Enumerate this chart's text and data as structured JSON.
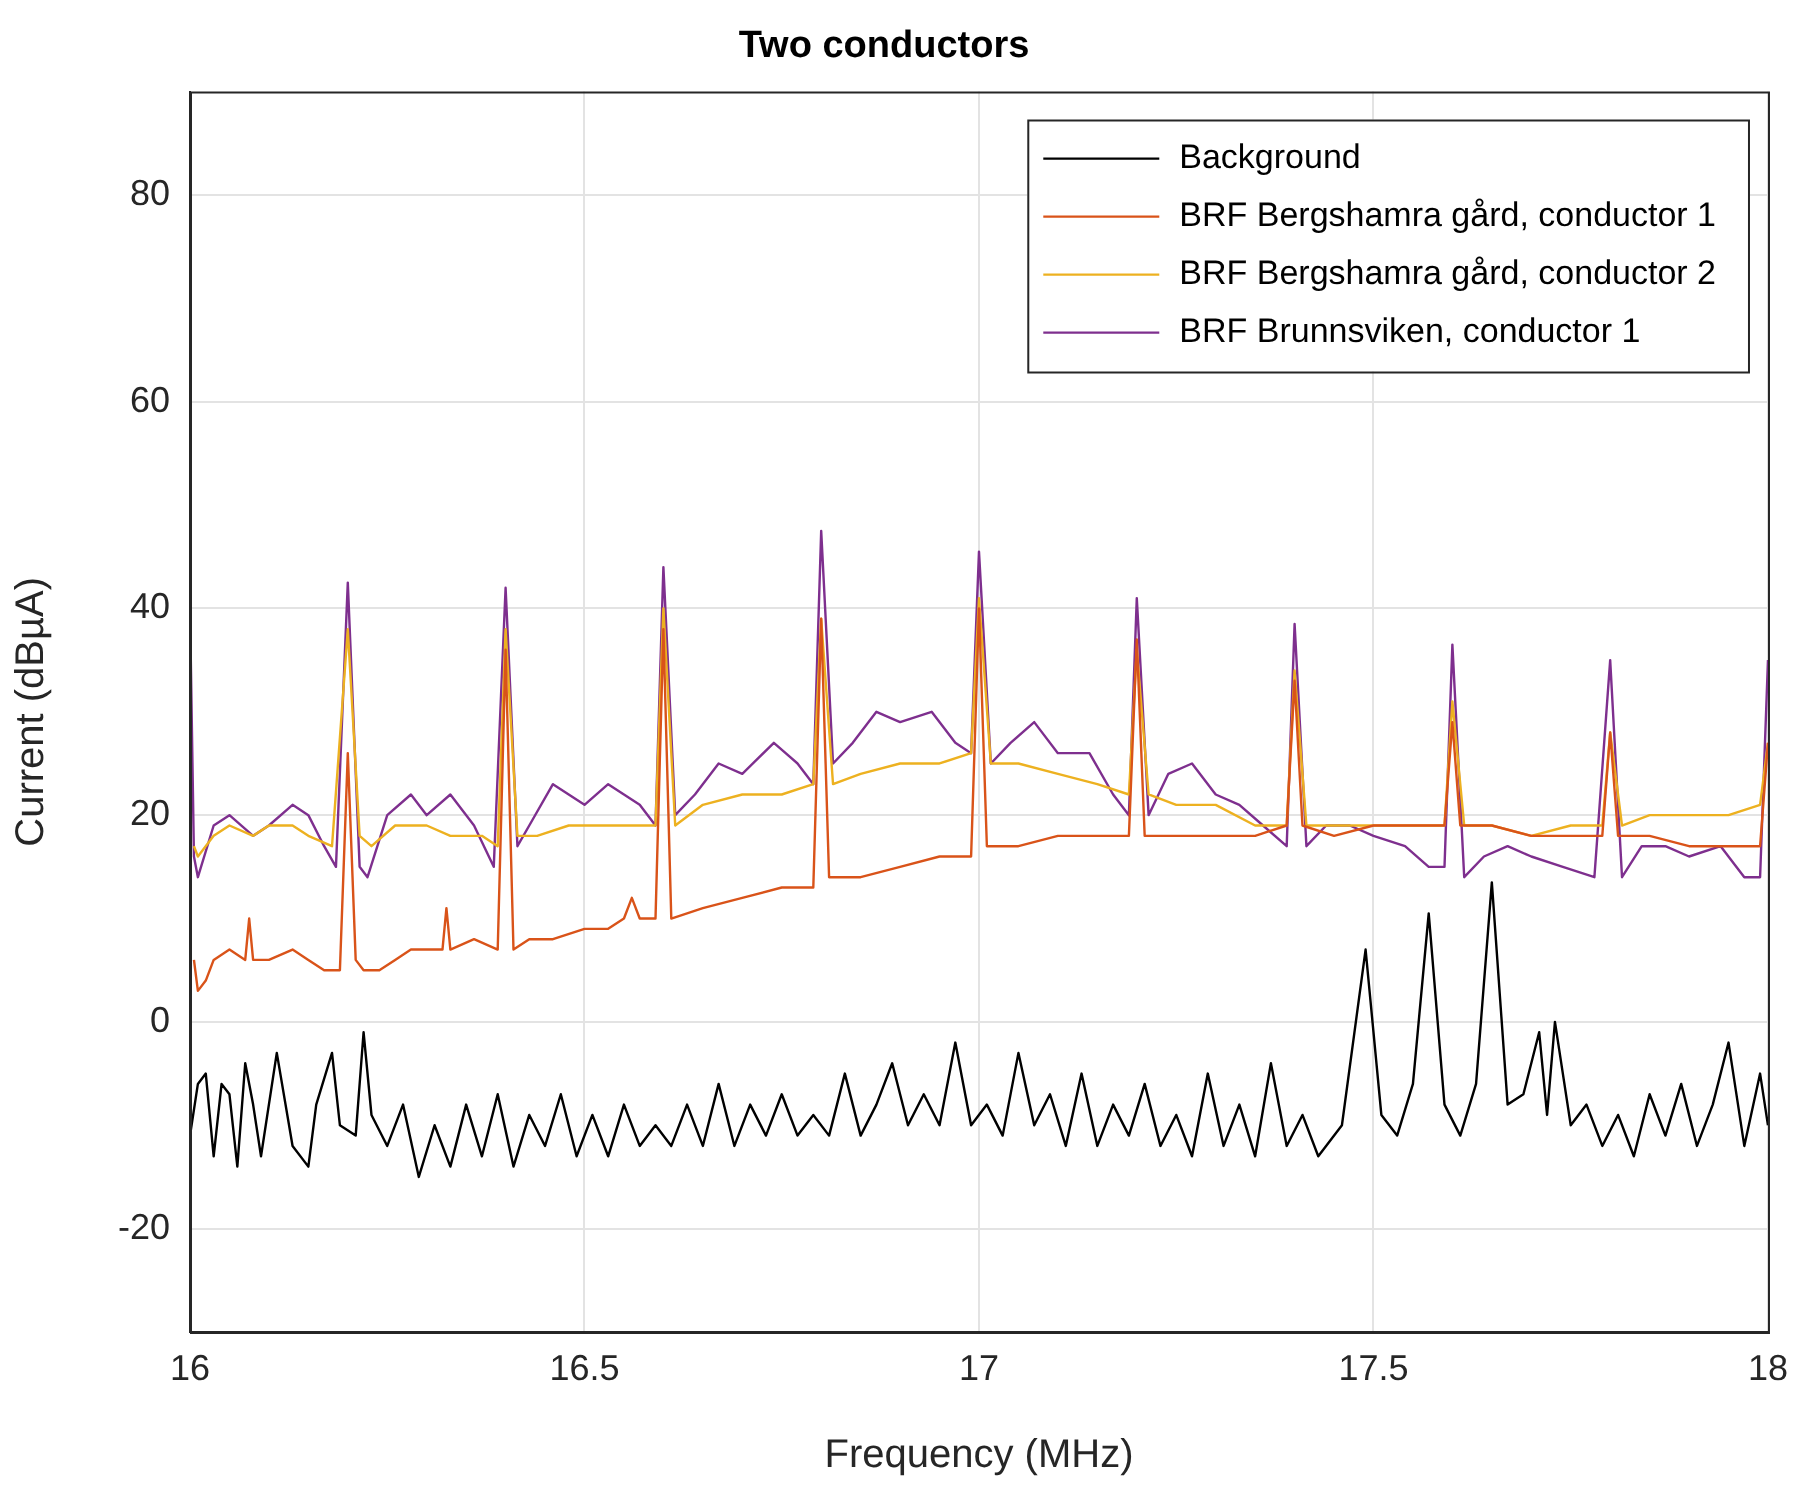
{
  "chart_data": {
    "type": "line",
    "title": "Two conductors",
    "xlabel": "Frequency (MHz)",
    "ylabel": "Current (dBµA)",
    "xlim": [
      16,
      18
    ],
    "xticks": [
      16,
      16.5,
      17,
      17.5,
      18
    ],
    "ylim": [
      -30,
      90
    ],
    "yticks": [
      -20,
      0,
      20,
      40,
      60,
      80
    ],
    "grid": true,
    "legend": "top right",
    "series": [
      {
        "name": "Background",
        "color": "#000000",
        "x": [
          16.0,
          16.01,
          16.02,
          16.03,
          16.04,
          16.05,
          16.06,
          16.07,
          16.08,
          16.09,
          16.11,
          16.13,
          16.15,
          16.16,
          16.18,
          16.19,
          16.21,
          16.22,
          16.23,
          16.25,
          16.27,
          16.29,
          16.31,
          16.33,
          16.35,
          16.37,
          16.39,
          16.41,
          16.43,
          16.45,
          16.47,
          16.49,
          16.51,
          16.53,
          16.55,
          16.57,
          16.59,
          16.61,
          16.63,
          16.65,
          16.67,
          16.69,
          16.71,
          16.73,
          16.75,
          16.77,
          16.79,
          16.81,
          16.83,
          16.85,
          16.87,
          16.89,
          16.91,
          16.93,
          16.95,
          16.97,
          16.99,
          17.01,
          17.03,
          17.05,
          17.07,
          17.09,
          17.11,
          17.13,
          17.15,
          17.17,
          17.19,
          17.21,
          17.23,
          17.25,
          17.27,
          17.29,
          17.31,
          17.33,
          17.35,
          17.37,
          17.39,
          17.41,
          17.43,
          17.46,
          17.49,
          17.51,
          17.53,
          17.55,
          17.57,
          17.59,
          17.61,
          17.63,
          17.65,
          17.67,
          17.69,
          17.71,
          17.72,
          17.73,
          17.75,
          17.77,
          17.79,
          17.81,
          17.83,
          17.85,
          17.87,
          17.89,
          17.91,
          17.93,
          17.95,
          17.97,
          17.99,
          18.0
        ],
        "values": [
          -11,
          -6,
          -5,
          -13,
          -6,
          -7,
          -14,
          -4,
          -8,
          -13,
          -3,
          -12,
          -14,
          -8,
          -3,
          -10,
          -11,
          -1,
          -9,
          -12,
          -8,
          -15,
          -10,
          -14,
          -8,
          -13,
          -7,
          -14,
          -9,
          -12,
          -7,
          -13,
          -9,
          -13,
          -8,
          -12,
          -10,
          -12,
          -8,
          -12,
          -6,
          -12,
          -8,
          -11,
          -7,
          -11,
          -9,
          -11,
          -5,
          -11,
          -8,
          -4,
          -10,
          -7,
          -10,
          -2,
          -10,
          -8,
          -11,
          -3,
          -10,
          -7,
          -12,
          -5,
          -12,
          -8,
          -11,
          -6,
          -12,
          -9,
          -13,
          -5,
          -12,
          -8,
          -13,
          -4,
          -12,
          -9,
          -13,
          -10,
          7,
          -9,
          -11,
          -6,
          10.5,
          -8,
          -11,
          -6,
          13.5,
          -8,
          -7,
          -1,
          -9,
          0,
          -10,
          -8,
          -12,
          -9,
          -13,
          -7,
          -11,
          -6,
          -12,
          -8,
          -2,
          -12,
          -5,
          -10
        ]
      },
      {
        "name": "BRF Bergshamra gård, conductor 1",
        "color": "#d95319",
        "x": [
          16.005,
          16.01,
          16.02,
          16.03,
          16.05,
          16.07,
          16.075,
          16.08,
          16.1,
          16.13,
          16.15,
          16.17,
          16.19,
          16.2,
          16.21,
          16.22,
          16.24,
          16.26,
          16.28,
          16.3,
          16.32,
          16.325,
          16.33,
          16.36,
          16.39,
          16.4,
          16.41,
          16.43,
          16.46,
          16.5,
          16.53,
          16.55,
          16.56,
          16.57,
          16.59,
          16.6,
          16.61,
          16.65,
          16.7,
          16.75,
          16.79,
          16.8,
          16.81,
          16.85,
          16.9,
          16.95,
          16.99,
          17.0,
          17.01,
          17.05,
          17.1,
          17.15,
          17.19,
          17.2,
          17.21,
          17.25,
          17.3,
          17.35,
          17.39,
          17.4,
          17.41,
          17.45,
          17.5,
          17.55,
          17.59,
          17.6,
          17.61,
          17.65,
          17.7,
          17.75,
          17.79,
          17.8,
          17.81,
          17.85,
          17.9,
          17.95,
          17.99,
          18.0
        ],
        "values": [
          6,
          3,
          4,
          6,
          7,
          6,
          10,
          6,
          6,
          7,
          6,
          5,
          5,
          26,
          6,
          5,
          5,
          6,
          7,
          7,
          7,
          11,
          7,
          8,
          7,
          36,
          7,
          8,
          8,
          9,
          9,
          10,
          12,
          10,
          10,
          38,
          10,
          11,
          12,
          13,
          13,
          39,
          14,
          14,
          15,
          16,
          16,
          40,
          17,
          17,
          18,
          18,
          18,
          37,
          18,
          18,
          18,
          18,
          19,
          33,
          19,
          18,
          19,
          19,
          19,
          29,
          19,
          19,
          18,
          18,
          18,
          28,
          18,
          18,
          17,
          17,
          17,
          27
        ]
      },
      {
        "name": "BRF Bergshamra gård, conductor 2",
        "color": "#edb120",
        "x": [
          16.005,
          16.01,
          16.03,
          16.05,
          16.08,
          16.1,
          16.13,
          16.15,
          16.18,
          16.2,
          16.215,
          16.23,
          16.26,
          16.3,
          16.33,
          16.37,
          16.39,
          16.4,
          16.415,
          16.44,
          16.48,
          16.52,
          16.56,
          16.59,
          16.6,
          16.615,
          16.65,
          16.7,
          16.75,
          16.79,
          16.8,
          16.815,
          16.85,
          16.9,
          16.95,
          16.99,
          17.0,
          17.015,
          17.05,
          17.1,
          17.15,
          17.19,
          17.2,
          17.215,
          17.25,
          17.3,
          17.35,
          17.39,
          17.4,
          17.415,
          17.45,
          17.5,
          17.55,
          17.59,
          17.6,
          17.615,
          17.65,
          17.7,
          17.75,
          17.79,
          17.8,
          17.815,
          17.85,
          17.9,
          17.95,
          17.99,
          18.0
        ],
        "values": [
          17,
          16,
          18,
          19,
          18,
          19,
          19,
          18,
          17,
          38,
          18,
          17,
          19,
          19,
          18,
          18,
          17,
          38,
          18,
          18,
          19,
          19,
          19,
          19,
          40,
          19,
          21,
          22,
          22,
          23,
          39,
          23,
          24,
          25,
          25,
          26,
          41,
          25,
          25,
          24,
          23,
          22,
          36,
          22,
          21,
          21,
          19,
          19,
          34,
          19,
          19,
          19,
          19,
          19,
          31,
          19,
          19,
          18,
          19,
          19,
          28,
          19,
          20,
          20,
          20,
          21,
          27
        ]
      },
      {
        "name": "BRF Brunnsviken, conductor 1",
        "color": "#7e2f8e",
        "x": [
          16.0,
          16.005,
          16.01,
          16.03,
          16.05,
          16.08,
          16.1,
          16.13,
          16.15,
          16.17,
          16.185,
          16.2,
          16.215,
          16.225,
          16.25,
          16.28,
          16.3,
          16.33,
          16.36,
          16.385,
          16.4,
          16.415,
          16.43,
          16.46,
          16.5,
          16.53,
          16.57,
          16.59,
          16.6,
          16.615,
          16.64,
          16.67,
          16.7,
          16.74,
          16.77,
          16.79,
          16.8,
          16.815,
          16.84,
          16.87,
          16.9,
          16.94,
          16.97,
          16.99,
          17.0,
          17.015,
          17.04,
          17.07,
          17.1,
          17.14,
          17.17,
          17.19,
          17.2,
          17.215,
          17.24,
          17.27,
          17.3,
          17.33,
          17.36,
          17.39,
          17.4,
          17.415,
          17.44,
          17.47,
          17.5,
          17.54,
          17.57,
          17.59,
          17.6,
          17.615,
          17.64,
          17.67,
          17.7,
          17.74,
          17.78,
          17.8,
          17.815,
          17.84,
          17.87,
          17.9,
          17.94,
          17.97,
          17.99,
          18.0
        ],
        "values": [
          40,
          16,
          14,
          19,
          20,
          18,
          19,
          21,
          20,
          17,
          15,
          42.5,
          15,
          14,
          20,
          22,
          20,
          22,
          19,
          15,
          42,
          17,
          19,
          23,
          21,
          23,
          21,
          19,
          44,
          20,
          22,
          25,
          24,
          27,
          25,
          23,
          47.5,
          25,
          27,
          30,
          29,
          30,
          27,
          26,
          45.5,
          25,
          27,
          29,
          26,
          26,
          22,
          20,
          41,
          20,
          24,
          25,
          22,
          21,
          19,
          17,
          38.5,
          17,
          19,
          19,
          18,
          17,
          15,
          15,
          36.5,
          14,
          16,
          17,
          16,
          15,
          14,
          35,
          14,
          17,
          17,
          16,
          17,
          14,
          14,
          35
        ]
      }
    ]
  }
}
